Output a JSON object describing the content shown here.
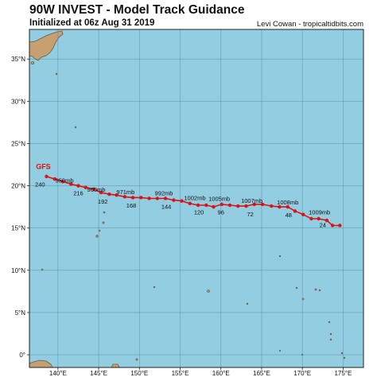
{
  "header": {
    "title": "90W INVEST - Model Track Guidance",
    "subtitle": "Initialized at 06z Aug 31 2019",
    "credit": "Levi Cowan - tropicaltidbits.com"
  },
  "colors": {
    "ocean": "#92cde2",
    "land": "#c7a072",
    "grid": "#5c8fa3",
    "track": "#dd1111",
    "model_label": "#dd1111"
  },
  "map": {
    "lon_ticks": [
      {
        "value": 140,
        "label": "140°E"
      },
      {
        "value": 145,
        "label": "145°E"
      },
      {
        "value": 150,
        "label": "150°E"
      },
      {
        "value": 155,
        "label": "155°E"
      },
      {
        "value": 160,
        "label": "160°E"
      },
      {
        "value": 165,
        "label": "165°E"
      },
      {
        "value": 170,
        "label": "170°E"
      },
      {
        "value": 175,
        "label": "175°E"
      }
    ],
    "lat_ticks": [
      {
        "value": 0,
        "label": "0°"
      },
      {
        "value": 5,
        "label": "5°N"
      },
      {
        "value": 10,
        "label": "10°N"
      },
      {
        "value": 15,
        "label": "15°N"
      },
      {
        "value": 20,
        "label": "20°N"
      },
      {
        "value": 25,
        "label": "25°N"
      },
      {
        "value": 30,
        "label": "30°N"
      },
      {
        "value": 35,
        "label": "35°N"
      }
    ],
    "lon_range": [
      136.5,
      177.5
    ],
    "lat_range": [
      -1.5,
      38.5
    ]
  },
  "tracks": [
    {
      "model": "GFS",
      "points": [
        {
          "lon": 138.6,
          "lat": 21.1
        },
        {
          "lon": 139.6,
          "lat": 20.8
        },
        {
          "lon": 140.6,
          "lat": 20.5
        },
        {
          "lon": 141.6,
          "lat": 20.2
        },
        {
          "lon": 142.5,
          "lat": 20.0
        },
        {
          "lon": 143.4,
          "lat": 19.8
        },
        {
          "lon": 144.4,
          "lat": 19.6
        },
        {
          "lon": 145.3,
          "lat": 19.2
        },
        {
          "lon": 146.3,
          "lat": 19.0
        },
        {
          "lon": 147.2,
          "lat": 18.9
        },
        {
          "lon": 148.2,
          "lat": 18.7
        },
        {
          "lon": 149.2,
          "lat": 18.6
        },
        {
          "lon": 150.2,
          "lat": 18.6
        },
        {
          "lon": 151.2,
          "lat": 18.5
        },
        {
          "lon": 152.2,
          "lat": 18.5
        },
        {
          "lon": 153.2,
          "lat": 18.5
        },
        {
          "lon": 154.2,
          "lat": 18.3
        },
        {
          "lon": 155.2,
          "lat": 18.2
        },
        {
          "lon": 156.2,
          "lat": 17.9
        },
        {
          "lon": 157.2,
          "lat": 17.7
        },
        {
          "lon": 158.2,
          "lat": 17.7
        },
        {
          "lon": 159.1,
          "lat": 17.5
        },
        {
          "lon": 160.1,
          "lat": 17.8
        },
        {
          "lon": 161.1,
          "lat": 17.7
        },
        {
          "lon": 162.1,
          "lat": 17.6
        },
        {
          "lon": 163.1,
          "lat": 17.6
        },
        {
          "lon": 164.1,
          "lat": 17.8
        },
        {
          "lon": 165.1,
          "lat": 17.8
        },
        {
          "lon": 166.2,
          "lat": 17.6
        },
        {
          "lon": 167.2,
          "lat": 17.5
        },
        {
          "lon": 168.2,
          "lat": 17.5
        },
        {
          "lon": 169.1,
          "lat": 17.0
        },
        {
          "lon": 170.1,
          "lat": 16.6
        },
        {
          "lon": 171.1,
          "lat": 16.1
        },
        {
          "lon": 172.0,
          "lat": 16.1
        },
        {
          "lon": 173.0,
          "lat": 15.9
        },
        {
          "lon": 173.7,
          "lat": 15.3
        },
        {
          "lon": 174.6,
          "lat": 15.3
        }
      ],
      "labels": [
        {
          "text": "GFS",
          "lon": 137.3,
          "lat": 22.0,
          "kind": "model"
        },
        {
          "text": "240",
          "lon": 137.8,
          "lat": 19.9,
          "kind": "hour"
        },
        {
          "text": "950mb",
          "lon": 140.8,
          "lat": 20.4,
          "kind": "pressure"
        },
        {
          "text": "216",
          "lon": 142.5,
          "lat": 18.9,
          "kind": "hour"
        },
        {
          "text": "960mb",
          "lon": 144.7,
          "lat": 19.3,
          "kind": "pressure"
        },
        {
          "text": "192",
          "lon": 145.5,
          "lat": 17.9,
          "kind": "hour"
        },
        {
          "text": "971mb",
          "lon": 148.3,
          "lat": 19.0,
          "kind": "pressure"
        },
        {
          "text": "168",
          "lon": 149.0,
          "lat": 17.4,
          "kind": "hour"
        },
        {
          "text": "992mb",
          "lon": 153.0,
          "lat": 18.9,
          "kind": "pressure"
        },
        {
          "text": "144",
          "lon": 153.3,
          "lat": 17.3,
          "kind": "hour"
        },
        {
          "text": "1002mb",
          "lon": 156.8,
          "lat": 18.3,
          "kind": "pressure"
        },
        {
          "text": "120",
          "lon": 157.3,
          "lat": 16.6,
          "kind": "hour"
        },
        {
          "text": "1005mb",
          "lon": 159.8,
          "lat": 18.2,
          "kind": "pressure"
        },
        {
          "text": "96",
          "lon": 160.0,
          "lat": 16.6,
          "kind": "hour"
        },
        {
          "text": "1007mb",
          "lon": 163.8,
          "lat": 18.0,
          "kind": "pressure"
        },
        {
          "text": "72",
          "lon": 163.6,
          "lat": 16.4,
          "kind": "hour"
        },
        {
          "text": "1008mb",
          "lon": 168.2,
          "lat": 17.8,
          "kind": "pressure"
        },
        {
          "text": "48",
          "lon": 168.3,
          "lat": 16.3,
          "kind": "hour"
        },
        {
          "text": "1009mb",
          "lon": 172.1,
          "lat": 16.6,
          "kind": "pressure"
        },
        {
          "text": "24",
          "lon": 172.5,
          "lat": 15.1,
          "kind": "hour"
        }
      ]
    }
  ]
}
